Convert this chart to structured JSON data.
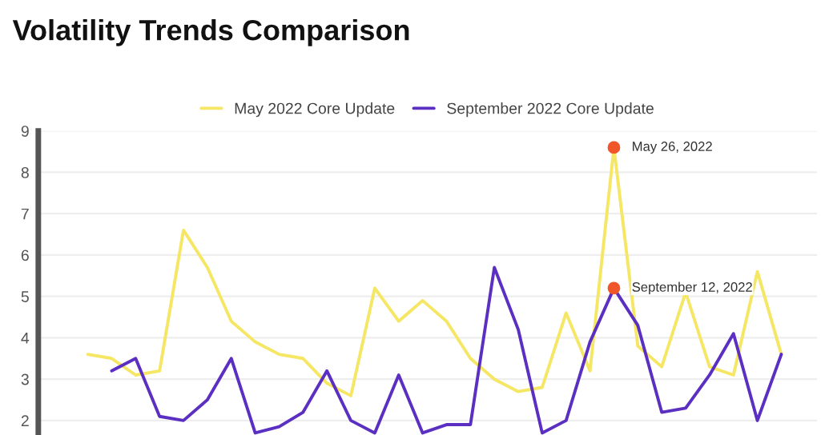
{
  "chart_data": {
    "type": "line",
    "title": "Volatility Trends Comparison",
    "categories": [
      null,
      null,
      null,
      null,
      null,
      null,
      null,
      null,
      null,
      null,
      null,
      null,
      null,
      null,
      null,
      null,
      null,
      null,
      null,
      null,
      null,
      null,
      null,
      null,
      null,
      null,
      null,
      null,
      null,
      null
    ],
    "series": [
      {
        "name": "May 2022 Core Update",
        "color": "#f5e663",
        "values": [
          3.6,
          3.5,
          3.1,
          3.2,
          6.6,
          5.7,
          4.4,
          3.9,
          3.6,
          3.5,
          2.9,
          2.6,
          5.2,
          4.4,
          4.9,
          4.4,
          3.5,
          3.0,
          2.7,
          2.8,
          4.6,
          3.2,
          8.6,
          3.8,
          3.3,
          5.1,
          3.3,
          3.1,
          5.6,
          3.6
        ]
      },
      {
        "name": "September 2022 Core Update",
        "color": "#5a2fc2",
        "values": [
          null,
          3.2,
          3.5,
          2.1,
          2.0,
          2.5,
          3.5,
          1.7,
          1.85,
          2.2,
          3.2,
          2.0,
          1.7,
          3.1,
          1.7,
          1.9,
          1.9,
          5.7,
          4.2,
          1.7,
          2.0,
          3.9,
          5.2,
          4.3,
          2.2,
          2.3,
          3.1,
          4.1,
          2.0,
          3.6
        ]
      },
      {
        "type": "scatter",
        "color": "#f0562a",
        "values": [
          null,
          null,
          null,
          null,
          null,
          null,
          null,
          null,
          null,
          null,
          null,
          null,
          null,
          null,
          null,
          null,
          null,
          null,
          null,
          null,
          null,
          null,
          8.6,
          null,
          null,
          null,
          null,
          null,
          null,
          null
        ]
      },
      {
        "type": "scatter",
        "color": "#f0562a",
        "values": [
          null,
          null,
          null,
          null,
          null,
          null,
          null,
          null,
          null,
          null,
          null,
          null,
          null,
          null,
          null,
          null,
          null,
          null,
          null,
          null,
          null,
          null,
          5.2,
          null,
          null,
          null,
          null,
          null,
          null,
          null
        ]
      }
    ],
    "annotations": [
      "May 26, 2022",
      "September 12, 2022"
    ],
    "ylim": [
      1.65,
      9
    ],
    "yticks": [
      2,
      3,
      4,
      5,
      6,
      7,
      8,
      9
    ],
    "grid": "y",
    "legend": "top"
  }
}
